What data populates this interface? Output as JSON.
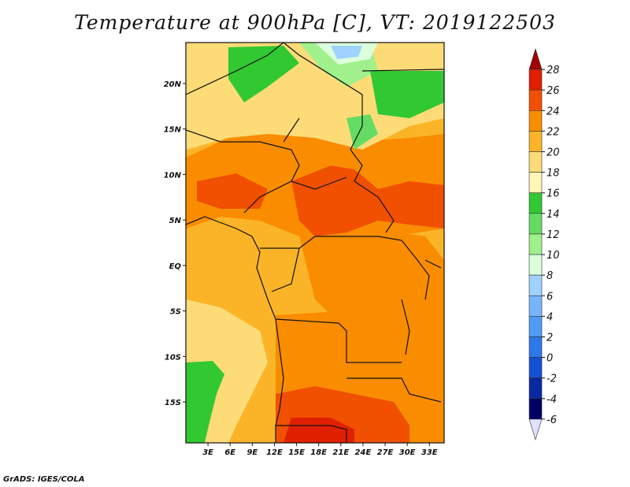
{
  "title": "Temperature at 900hPa [C], VT: 2019122503",
  "footer": "GrADS: IGES/COLA",
  "axes": {
    "lat_ticks": [
      "20N",
      "15N",
      "10N",
      "5N",
      "EQ",
      "5S",
      "10S",
      "15S"
    ],
    "lat_values": [
      20,
      15,
      10,
      5,
      0,
      -5,
      -10,
      -15
    ],
    "lon_ticks": [
      "3E",
      "6E",
      "9E",
      "12E",
      "15E",
      "18E",
      "21E",
      "24E",
      "27E",
      "30E",
      "33E"
    ],
    "lon_values": [
      3,
      6,
      9,
      12,
      15,
      18,
      21,
      24,
      27,
      30,
      33
    ],
    "lat_range": [
      -19.5,
      24.5
    ],
    "lon_range": [
      0,
      35
    ]
  },
  "colorbar": {
    "labels": [
      "28",
      "26",
      "24",
      "22",
      "20",
      "18",
      "16",
      "14",
      "12",
      "10",
      "8",
      "6",
      "4",
      "2",
      "0",
      "-2",
      "-4",
      "-6"
    ],
    "colors": [
      "#a00000",
      "#e02000",
      "#f05000",
      "#fa8c00",
      "#fbb428",
      "#fddc78",
      "#fff5b4",
      "#32c832",
      "#64dc64",
      "#a0f08c",
      "#dcffdc",
      "#a0d2ff",
      "#78b4fa",
      "#509bf5",
      "#2d78eb",
      "#1450d2",
      "#0a28a0",
      "#000064",
      "#e0e0ff"
    ]
  }
}
